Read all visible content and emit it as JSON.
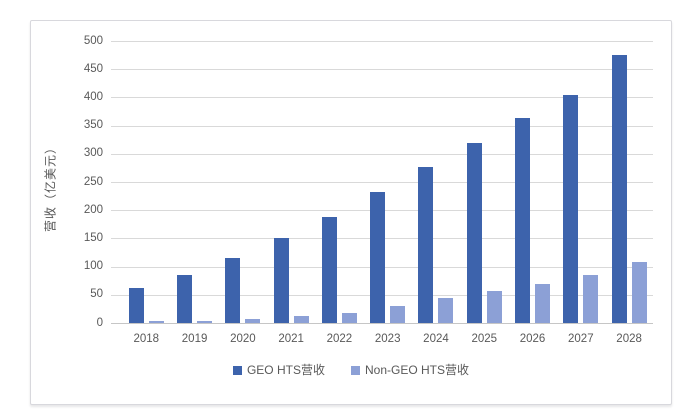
{
  "chart_data": {
    "type": "bar",
    "title": "",
    "ylabel": "营收（亿美元）",
    "xlabel": "",
    "categories": [
      "2018",
      "2019",
      "2020",
      "2021",
      "2022",
      "2023",
      "2024",
      "2025",
      "2026",
      "2027",
      "2028"
    ],
    "series": [
      {
        "name": "GEO HTS营收",
        "color": "#3d63ac",
        "values": [
          62,
          85,
          116,
          150,
          188,
          232,
          276,
          320,
          364,
          404,
          475
        ]
      },
      {
        "name": "Non-GEO HTS营收",
        "color": "#8ca0d6",
        "values": [
          3,
          4,
          7,
          12,
          18,
          31,
          44,
          56,
          69,
          85,
          109
        ]
      }
    ],
    "ylim": [
      0,
      500
    ],
    "ytick_step": 50,
    "grid": true,
    "legend_position": "bottom",
    "colors": {
      "gridline": "#d9d9d9",
      "zero_axis": "#c6c6c6",
      "axis_text": "#595959",
      "panel_border": "#d8d8dd",
      "background": "#ffffff"
    }
  }
}
